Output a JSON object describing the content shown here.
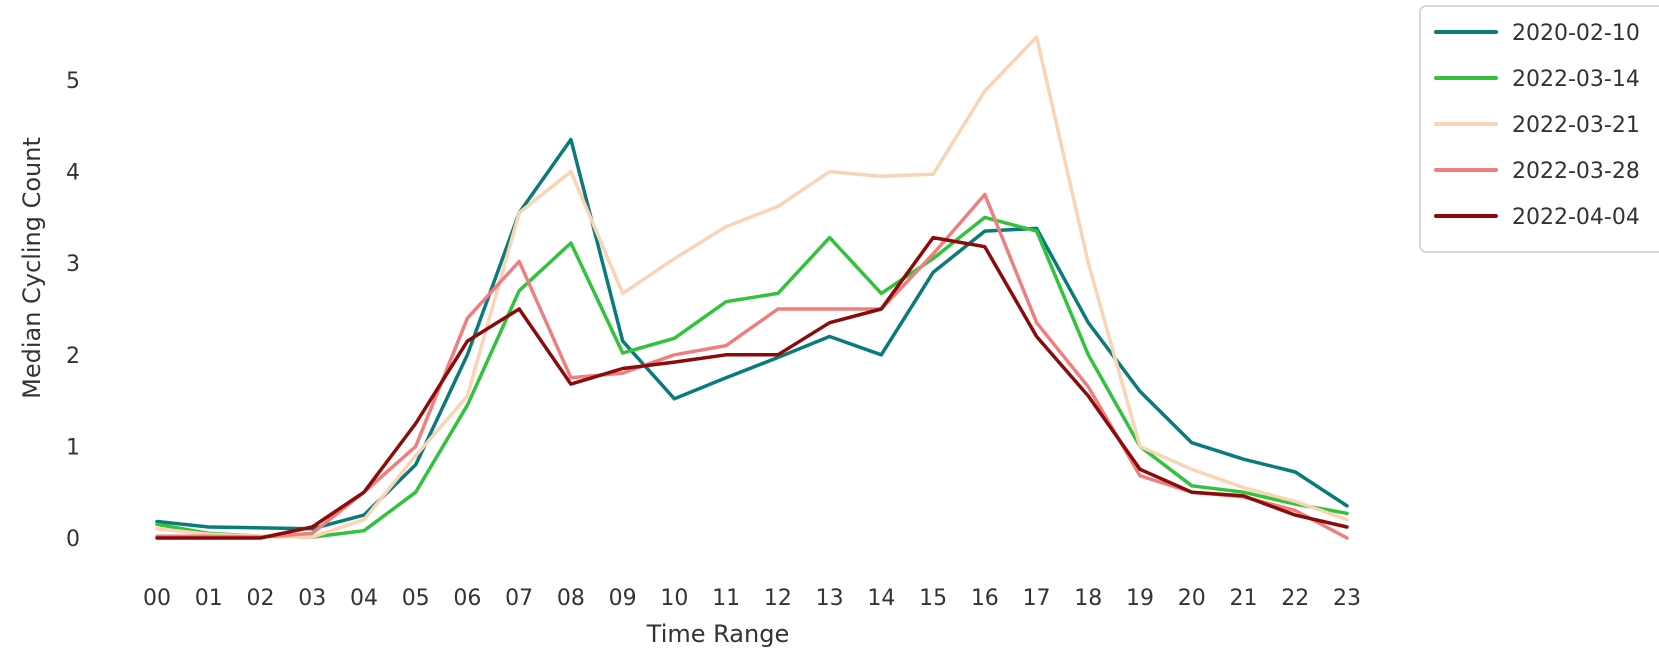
{
  "chart_data": {
    "type": "line",
    "xlabel": "Time Range",
    "ylabel": "Median Cycling Count",
    "categories": [
      "00",
      "01",
      "02",
      "03",
      "04",
      "05",
      "06",
      "07",
      "08",
      "09",
      "10",
      "11",
      "12",
      "13",
      "14",
      "15",
      "16",
      "17",
      "18",
      "19",
      "20",
      "21",
      "22",
      "23"
    ],
    "yticks": [
      0,
      1,
      2,
      3,
      4,
      5
    ],
    "ylim": [
      -0.3,
      5.5
    ],
    "grid": false,
    "legend_position": "top-right, outside plot area",
    "series": [
      {
        "name": "2020-02-10",
        "color": "#0b7a7a",
        "values": [
          0.18,
          0.12,
          0.11,
          0.1,
          0.25,
          0.8,
          2.0,
          3.55,
          4.35,
          2.15,
          1.52,
          1.75,
          1.97,
          2.2,
          2.0,
          2.9,
          3.35,
          3.38,
          2.35,
          1.6,
          1.04,
          0.86,
          0.72,
          0.35
        ]
      },
      {
        "name": "2022-03-14",
        "color": "#32c33c",
        "values": [
          0.15,
          0.05,
          0.02,
          0.01,
          0.08,
          0.5,
          1.45,
          2.7,
          3.22,
          2.02,
          2.18,
          2.58,
          2.67,
          3.28,
          2.67,
          3.05,
          3.5,
          3.35,
          2.0,
          1.0,
          0.57,
          0.5,
          0.37,
          0.27
        ]
      },
      {
        "name": "2022-03-21",
        "color": "#f9d5b5",
        "values": [
          0.1,
          0.04,
          0.02,
          0.01,
          0.2,
          0.9,
          1.55,
          3.55,
          4.0,
          2.67,
          3.05,
          3.4,
          3.62,
          4.0,
          3.95,
          3.97,
          4.88,
          5.47,
          3.0,
          1.0,
          0.75,
          0.55,
          0.4,
          0.2
        ]
      },
      {
        "name": "2022-03-28",
        "color": "#ee7f7f",
        "values": [
          0.02,
          0.02,
          0.01,
          0.05,
          0.5,
          1.0,
          2.4,
          3.02,
          1.75,
          1.8,
          2.0,
          2.1,
          2.5,
          2.5,
          2.5,
          3.1,
          3.75,
          2.35,
          1.65,
          0.68,
          0.5,
          0.45,
          0.3,
          0.0
        ]
      },
      {
        "name": "2022-04-04",
        "color": "#8b0a0a",
        "values": [
          0.0,
          0.0,
          0.0,
          0.12,
          0.5,
          1.25,
          2.15,
          2.5,
          1.68,
          1.85,
          1.92,
          2.0,
          2.0,
          2.35,
          2.5,
          3.28,
          3.18,
          2.2,
          1.55,
          0.75,
          0.5,
          0.46,
          0.25,
          0.12
        ]
      }
    ]
  }
}
